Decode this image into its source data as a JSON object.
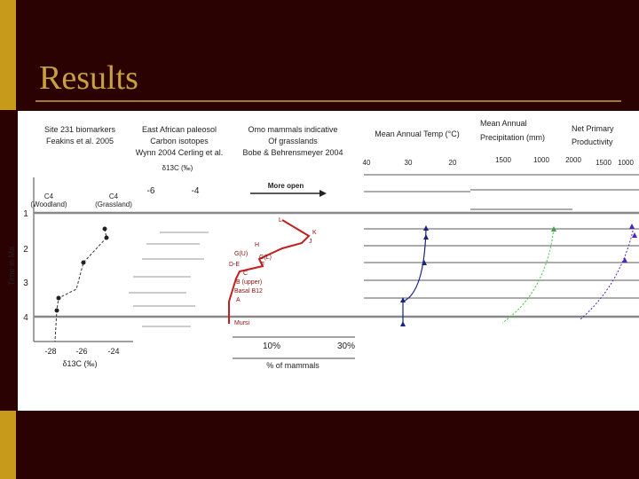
{
  "slide": {
    "title": "Results"
  },
  "figure": {
    "site231": {
      "lines": [
        "Site 231 biomarkers",
        "Feakins et al. 2005"
      ],
      "c4_woodland": [
        "C4",
        "(Woodland)"
      ],
      "c4_grassland": [
        "C4",
        "(Grassland)"
      ],
      "xticks": [
        "-28",
        "-26",
        "-24"
      ],
      "xlabel": "δ13C (‰)"
    },
    "paleosol": {
      "lines": [
        "East African paleosol",
        "Carbon isotopes",
        "Wynn 2004  Cerling et al."
      ],
      "axis_label": "δ13C (‰)",
      "xticks": [
        "-6",
        "-4"
      ]
    },
    "omo": {
      "lines": [
        "Omo mammals indicative",
        "Of grasslands",
        "Bobe & Behrensmeyer 2004"
      ],
      "arrow_label": "More open",
      "xticks": [
        "10%",
        "30%"
      ],
      "xlabel": "% of mammals",
      "members": [
        "L",
        "K",
        "J",
        "H",
        "G(U)",
        "G(L)",
        "D-E",
        "F",
        "C",
        "B (upper)",
        "Basal B12",
        "A",
        "Mursi"
      ]
    },
    "time_axis": {
      "label": "Time in Ma",
      "ticks": [
        "1",
        "2",
        "3",
        "4"
      ]
    },
    "temp": {
      "title": "Mean Annual Temp (°C)",
      "ticks": [
        "40",
        "30",
        "20"
      ]
    },
    "precip": {
      "title": [
        "Mean Annual",
        "Precipitation (mm)"
      ],
      "ticks": [
        "1500",
        "1000"
      ]
    },
    "npp": {
      "title": [
        "Net Primary",
        "Productivity"
      ],
      "ticks": [
        "2000",
        "1500",
        "1000"
      ]
    }
  }
}
